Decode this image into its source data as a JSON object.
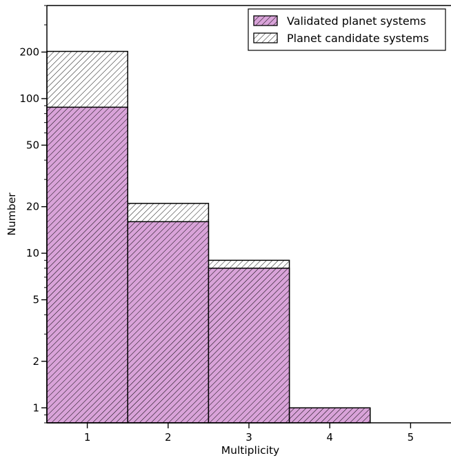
{
  "chart_data": {
    "type": "bar",
    "stacked": "overlay",
    "categories": [
      "1",
      "2",
      "3",
      "4",
      "5"
    ],
    "x": [
      1,
      2,
      3,
      4,
      5
    ],
    "series": [
      {
        "name": "Validated planet systems",
        "values": [
          88,
          16,
          8,
          1,
          0
        ],
        "fill": "#d9a3d9",
        "hatch": "dense-diagonal"
      },
      {
        "name": "Planet candidate systems",
        "values": [
          202,
          21,
          9,
          0,
          0
        ],
        "fill": "#ffffff",
        "hatch": "diagonal"
      }
    ],
    "xlabel": "Multiplicity",
    "ylabel": "Number",
    "xlim": [
      0.5,
      5.5
    ],
    "ylim": [
      0.8,
      400
    ],
    "yscale": "log",
    "yticks": [
      1,
      2,
      5,
      10,
      20,
      50,
      100,
      200
    ],
    "ytick_labels": [
      "1",
      "2",
      "5",
      "10",
      "20",
      "50",
      "100",
      "200"
    ],
    "xticks": [
      1,
      2,
      3,
      4,
      5
    ],
    "xtick_labels": [
      "1",
      "2",
      "3",
      "4",
      "5"
    ],
    "grid": false,
    "legend_placement": "top-right"
  }
}
